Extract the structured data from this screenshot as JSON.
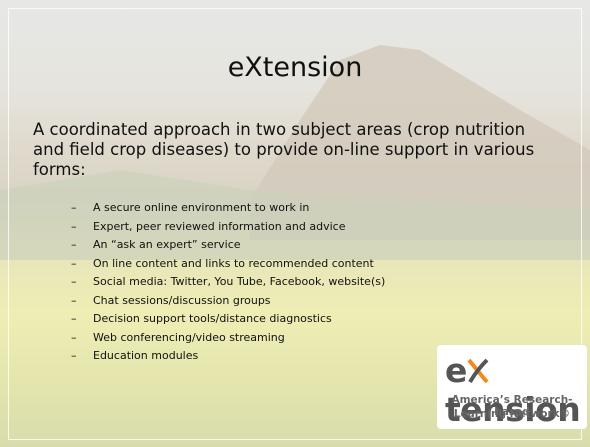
{
  "slide": {
    "title": "eXtension",
    "intro": "A coordinated approach in two subject areas (crop nutrition and field crop diseases) to provide on-line support in various forms:",
    "bullet_marker": "–",
    "bullets": [
      "A secure online environment to work in",
      "Expert, peer reviewed information and advice",
      "An “ask an expert” service",
      "On line content and links to recommended content",
      "Social media: Twitter, You Tube, Facebook, website(s)",
      "Chat sessions/discussion groups",
      "Decision support tools/distance diagnostics",
      "Web conferencing/video streaming",
      "Education modules"
    ]
  },
  "logo": {
    "wordmark": [
      "e",
      "tension"
    ],
    "tagline": [
      "America’s Research-based",
      "Learning Network®"
    ]
  }
}
